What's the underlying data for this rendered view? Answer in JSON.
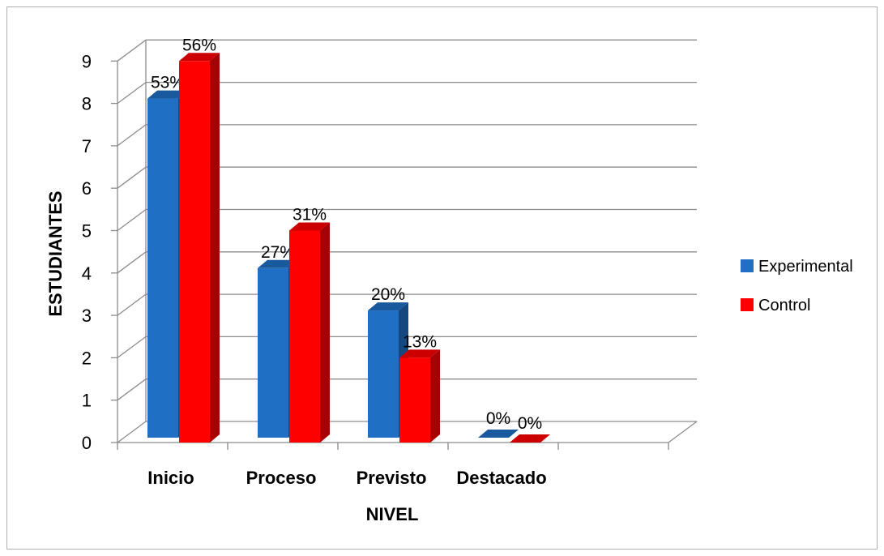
{
  "chart_data": {
    "type": "bar",
    "categories": [
      "Inicio",
      "Proceso",
      "Previsto",
      "Destacado"
    ],
    "series": [
      {
        "name": "Experimental",
        "values": [
          8,
          4,
          3,
          0
        ],
        "labels": [
          "53%",
          "27%",
          "20%",
          "0%"
        ],
        "color": "#1f6fc4"
      },
      {
        "name": "Control",
        "values": [
          9,
          5,
          2,
          0
        ],
        "labels": [
          "56%",
          "31%",
          "13%",
          "0%"
        ],
        "color": "#ff0000"
      }
    ],
    "xlabel": "NIVEL",
    "ylabel": "ESTUDIANTES",
    "ylim": [
      0,
      9
    ],
    "yticks": [
      0,
      1,
      2,
      3,
      4,
      5,
      6,
      7,
      8,
      9
    ],
    "grid": true,
    "style": "3d-clustered-column",
    "legend_position": "right"
  }
}
